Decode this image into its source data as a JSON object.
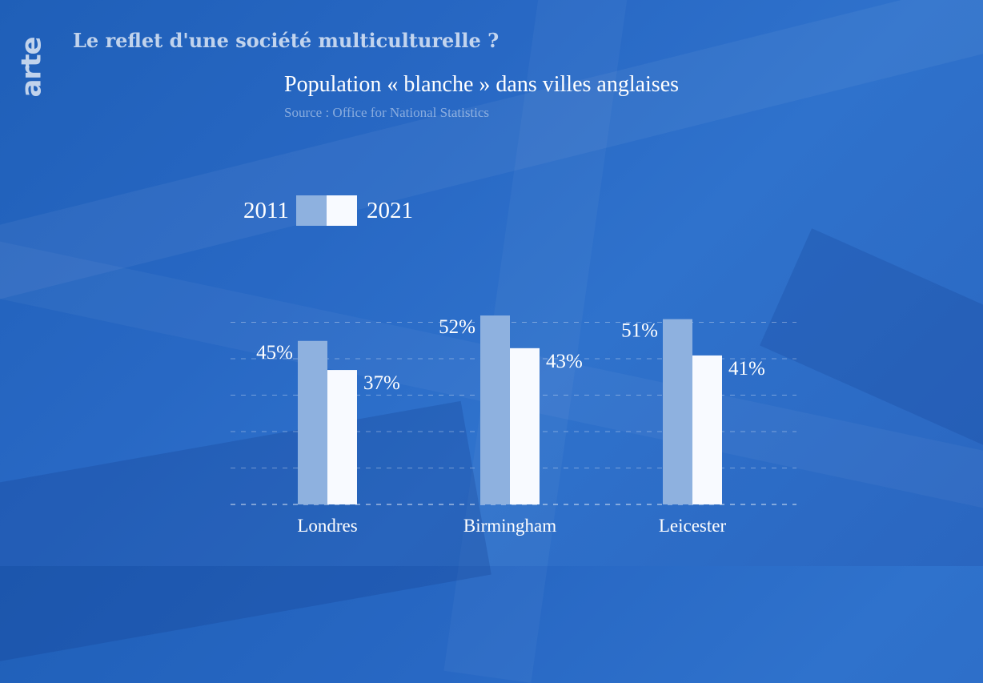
{
  "logo": {
    "text": "arte"
  },
  "header": {
    "title": "Le reflet d'une société multiculturelle ?"
  },
  "chart_data": {
    "type": "bar",
    "title": "Population « blanche » dans villes anglaises",
    "subtitle": "Source : Office for National Statistics",
    "categories": [
      "Londres",
      "Birmingham",
      "Leicester"
    ],
    "series": [
      {
        "name": "2011",
        "values": [
          45,
          52,
          51
        ],
        "labels": [
          "45%",
          "52%",
          "51%"
        ],
        "color": "#8eb1df"
      },
      {
        "name": "2021",
        "values": [
          37,
          43,
          41
        ],
        "labels": [
          "37%",
          "43%",
          "41%"
        ],
        "color": "#f8faff"
      }
    ],
    "ylim": [
      0,
      52
    ],
    "grid": true,
    "legend": "top-left"
  }
}
